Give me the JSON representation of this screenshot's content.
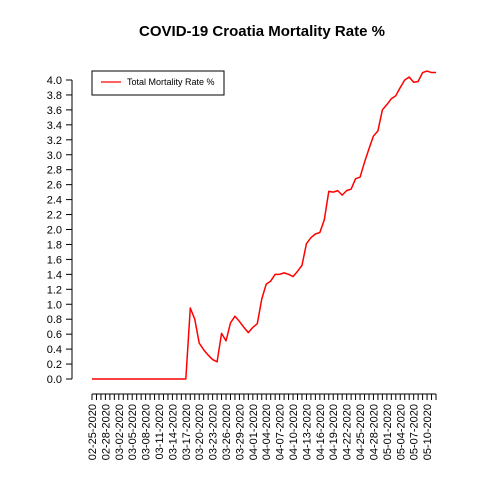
{
  "chart_data": {
    "type": "line",
    "title": "COVID-19 Croatia Mortality Rate %",
    "xlabel": "",
    "ylabel": "",
    "ylim": [
      0,
      4.0
    ],
    "yticks": [
      "0.0",
      "0.2",
      "0.4",
      "0.6",
      "0.8",
      "1.0",
      "1.2",
      "1.4",
      "1.6",
      "1.8",
      "2.0",
      "2.2",
      "2.4",
      "2.6",
      "2.8",
      "3.0",
      "3.2",
      "3.4",
      "3.6",
      "3.8",
      "4.0"
    ],
    "xtick_labels": [
      "02-25-2020",
      "02-28-2020",
      "03-02-2020",
      "03-05-2020",
      "03-08-2020",
      "03-11-2020",
      "03-14-2020",
      "03-17-2020",
      "03-20-2020",
      "03-23-2020",
      "03-26-2020",
      "03-29-2020",
      "04-01-2020",
      "04-04-2020",
      "04-07-2020",
      "04-10-2020",
      "04-13-2020",
      "04-16-2020",
      "04-19-2020",
      "04-22-2020",
      "04-25-2020",
      "04-28-2020",
      "05-01-2020",
      "05-04-2020",
      "05-07-2020",
      "05-10-2020"
    ],
    "legend_position": "top-left",
    "grid": false,
    "series": [
      {
        "name": "Total Mortality Rate %",
        "color": "#ff0000",
        "x": [
          "02-25-2020",
          "02-26-2020",
          "02-27-2020",
          "02-28-2020",
          "02-29-2020",
          "03-01-2020",
          "03-02-2020",
          "03-03-2020",
          "03-04-2020",
          "03-05-2020",
          "03-06-2020",
          "03-07-2020",
          "03-08-2020",
          "03-09-2020",
          "03-10-2020",
          "03-11-2020",
          "03-12-2020",
          "03-13-2020",
          "03-14-2020",
          "03-15-2020",
          "03-16-2020",
          "03-17-2020",
          "03-18-2020",
          "03-19-2020",
          "03-20-2020",
          "03-21-2020",
          "03-22-2020",
          "03-23-2020",
          "03-24-2020",
          "03-25-2020",
          "03-26-2020",
          "03-27-2020",
          "03-28-2020",
          "03-29-2020",
          "03-30-2020",
          "03-31-2020",
          "04-01-2020",
          "04-02-2020",
          "04-03-2020",
          "04-04-2020",
          "04-05-2020",
          "04-06-2020",
          "04-07-2020",
          "04-08-2020",
          "04-09-2020",
          "04-10-2020",
          "04-11-2020",
          "04-12-2020",
          "04-13-2020",
          "04-14-2020",
          "04-15-2020",
          "04-16-2020",
          "04-17-2020",
          "04-18-2020",
          "04-19-2020",
          "04-20-2020",
          "04-21-2020",
          "04-22-2020",
          "04-23-2020",
          "04-24-2020",
          "04-25-2020",
          "04-26-2020",
          "04-27-2020",
          "04-28-2020",
          "04-29-2020",
          "04-30-2020",
          "05-01-2020",
          "05-02-2020",
          "05-03-2020",
          "05-04-2020",
          "05-05-2020",
          "05-06-2020",
          "05-07-2020",
          "05-08-2020",
          "05-09-2020",
          "05-10-2020",
          "05-11-2020",
          "05-12-2020"
        ],
        "values": [
          0,
          0,
          0,
          0,
          0,
          0,
          0,
          0,
          0,
          0,
          0,
          0,
          0,
          0,
          0,
          0,
          0,
          0,
          0,
          0,
          0,
          0,
          0.95,
          0.8,
          0.48,
          0.39,
          0.32,
          0.26,
          0.23,
          0.61,
          0.51,
          0.75,
          0.84,
          0.77,
          0.69,
          0.62,
          0.69,
          0.74,
          1.07,
          1.27,
          1.31,
          1.4,
          1.4,
          1.42,
          1.4,
          1.37,
          1.44,
          1.52,
          1.81,
          1.89,
          1.94,
          1.96,
          2.13,
          2.51,
          2.5,
          2.52,
          2.46,
          2.52,
          2.54,
          2.68,
          2.7,
          2.9,
          3.08,
          3.25,
          3.32,
          3.6,
          3.67,
          3.75,
          3.79,
          3.9,
          4.0,
          4.04,
          3.97,
          3.98,
          4.1,
          4.12,
          4.1,
          4.1
        ]
      }
    ]
  }
}
